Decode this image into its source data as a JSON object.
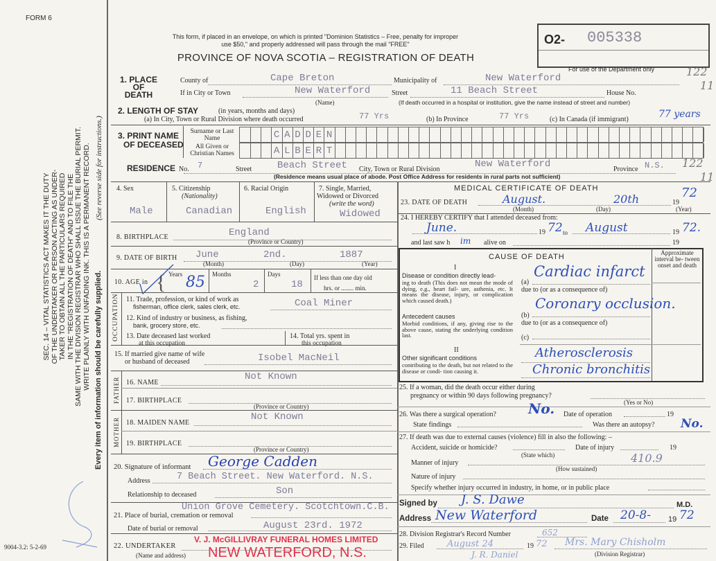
{
  "form_number": "FORM 6",
  "print_code": "9004-3.2: 5-2-69",
  "header": {
    "notice_line1": "This form, if placed in an envelope, on which is printed \"Dominion Statistics – Free, penalty for improper",
    "notice_line2": "use $50,\" and properly addressed will pass through the mail \"FREE\"",
    "title": "PROVINCE OF NOVA SCOTIA – REGISTRATION OF DEATH",
    "record_prefix": "O2-",
    "record_number": "005338",
    "dept_only": "For use of the Department only",
    "dept_code_1": "122",
    "dept_code_2": "11",
    "dept_code_3": "122",
    "dept_code_4": "11"
  },
  "sidebar": {
    "act_lines": [
      "SEC. 14 – VITAL STATISTICS ACT MAKES IT THE DUTY",
      "OF THE UNDERTAKER OR PERSON ACTING AS UNDER-",
      "TAKER TO OBTAIN ALL THE PARTICULARS REQUIRED",
      "IN THE \"REGISTRATION OF DEATH\" AND TO FILE THE",
      "SAME WITH THE DIVISION REGISTRAR WHO SHALL ISSUE THE BURIAL PERMIT.",
      "WRITE PLAINLY WITH UNFADING INK. THIS IS A PERMANENT RECORD."
    ],
    "every_item": "Every item of information should be carefully supplied.",
    "see_reverse": "(See reverse side for instructions.)"
  },
  "place_of_death": {
    "label": "1. PLACE OF DEATH",
    "county_label": "County of",
    "county": "Cape Breton",
    "municipality_label": "Municipality of",
    "municipality": "New Waterford",
    "city_label": "If in City or Town",
    "city": "New Waterford",
    "name_note": "(Name)",
    "street_label": "Street",
    "street": "11 Beach Street",
    "house_label": "House No.",
    "hospital_note": "(If death occurred in a hospital or institution, give the name instead of street and number)"
  },
  "length_of_stay": {
    "label": "2. LENGTH OF STAY",
    "label_note": "(in years, months and days)",
    "a_label": "(a) In City, Town or Rural Division where death occurred",
    "a_value": "77 Yrs",
    "b_label": "(b) In Province",
    "b_value": "77 Yrs",
    "c_label": "(c) In Canada (if immigrant)",
    "c_value": "77 years"
  },
  "name": {
    "label_1": "3. PRINT NAME",
    "label_2": "OF DECEASED",
    "surname_label": "Surname or Last Name",
    "given_label": "All Given or Christian Names",
    "surname": "CADDEN",
    "given": "ALBERT"
  },
  "residence": {
    "label": "RESIDENCE",
    "no_label": "No.",
    "no": "7",
    "street_label": "Street",
    "street": "Beach Street",
    "city_label": "City, Town or Rural Division",
    "city": "New Waterford",
    "province_label": "Province",
    "province": "N.S.",
    "note": "(Residence means usual place of abode. Post Office Address for residents in rural parts not sufficient)"
  },
  "personal": {
    "sex_label": "4. Sex",
    "sex": "Male",
    "citizenship_label": "5. Citizenship",
    "citizenship_sub": "(Nationality)",
    "citizenship": "Canadian",
    "racial_label": "6. Racial Origin",
    "racial": "English",
    "marital_label_1": "7. Single, Married,",
    "marital_label_2": "Widowed or Divorced",
    "marital_label_3": "(write the word)",
    "marital": "Widowed",
    "birthplace_label": "8. BIRTHPLACE",
    "birthplace": "England",
    "birthplace_note": "(Province or Country)",
    "dob_label": "9. DATE OF BIRTH",
    "dob_month": "June",
    "dob_day": "2nd.",
    "dob_year": "1887",
    "month_note": "(Month)",
    "day_note": "(Day)",
    "year_note": "(Year)",
    "age_label": "10. AGE in",
    "years_label": "Years",
    "years": "85",
    "months_label": "Months",
    "months": "2",
    "days_label": "Days",
    "days": "18",
    "less_day": "If less than one day old",
    "hrs_min": "hrs. or ........ min."
  },
  "occupation": {
    "section": "OCCUPATION",
    "trade_label_1": "11. Trade, profession, or kind of work as",
    "trade_label_2": "fisherman, office clerk, sales clerk, etc.",
    "trade": "Coal Miner",
    "industry_label_1": "12. Kind of industry or business, as fishing,",
    "industry_label_2": "bank, grocery store, etc.",
    "last_worked_label_1": "13. Date deceased last worked",
    "last_worked_label_2": "at this occupation",
    "total_years_label_1": "14. Total yrs. spent in",
    "total_years_label_2": "this occupation"
  },
  "spouse": {
    "label_1": "15. If married give name of wife",
    "label_2": "or husband of deceased",
    "name": "Isobel  MacNeil"
  },
  "father": {
    "section": "FATHER",
    "name_label": "16. NAME",
    "name": "Not Known",
    "birthplace_label": "17. BIRTHPLACE",
    "birthplace_note": "(Province or Country)"
  },
  "mother": {
    "section": "MOTHER",
    "maiden_label": "18. MAIDEN NAME",
    "maiden": "Not Known",
    "birthplace_label": "19. BIRTHPLACE",
    "birthplace_note": "(Province or Country)"
  },
  "informant": {
    "signature_label": "20. Signature of informant",
    "signature": "George Cadden",
    "address_label": "Address",
    "address": "7 Beach Street.  New Waterford. N.S.",
    "relationship_label": "Relationship to deceased",
    "relationship": "Son"
  },
  "burial": {
    "place_label": "21. Place of burial, cremation or removal",
    "place": "Union Grove Cemetery. Scotchtown.C.B.",
    "date_label": "Date of burial or removal",
    "date": "August 23rd. 1972"
  },
  "undertaker": {
    "label": "22. UNDERTAKER",
    "stamp_line1": "V. J. McGILLIVRAY FUNERAL HOMES LIMITED",
    "stamp_line2": "NEW WATERFORD, N.S.",
    "note": "(Name and address)"
  },
  "medical": {
    "title": "MEDICAL CERTIFICATE OF DEATH",
    "date_label": "23. DATE OF DEATH",
    "death_month": "August.",
    "death_day": "20th",
    "death_year_prefix": "19",
    "death_year": "72",
    "month_note": "(Month)",
    "day_note": "(Day)",
    "year_note": "(Year)",
    "certify_label": "24. I HEREBY CERTIFY that I attended deceased from:",
    "from_month": "June.",
    "from_year": "72",
    "to_label": "to",
    "to_month": "August",
    "to_year": "72.",
    "last_saw_label_1": "and last saw h",
    "last_saw_pronoun": "im",
    "last_saw_label_2": "alive on",
    "nineteen": "19"
  },
  "cause": {
    "title": "CAUSE OF DEATH",
    "interval_label": "Approximate interval be- tween onset and death",
    "part_1": "I",
    "direct_label": "Disease or condition directly lead-",
    "direct_desc": "ing to death (This does not mean the mode of dying, e.g., heart fail- ure, asthenia, etc. It means the disease, injury, or complication which caused death.)",
    "a_label": "(a)",
    "a_value": "Cardiac infarct",
    "due_to_1": "due to (or as a consequence of)",
    "antecedent_label": "Antecedent causes",
    "antecedent_desc": "Morbid conditions, if any, giving rise to the above cause, stating the underlying condition last.",
    "b_label": "(b)",
    "b_value": "Coronary occlusion.",
    "due_to_2": "due to (or as a consequence of)",
    "c_label": "(c)",
    "part_2": "II",
    "other_label": "Other significant conditions",
    "other_desc": "contributing to the death, but not related to the disease or condi- tion causing it.",
    "other_1": "Atherosclerosis",
    "other_2": "Chronic bronchitis"
  },
  "questions": {
    "q25_1": "25. If a woman, did the death occur either during",
    "q25_2": "pregnancy or within 90 days following pregnancy?",
    "yes_no": "(Yes or No)",
    "q26": "26. Was there a surgical operation?",
    "operation": "No.",
    "op_date_label": "Date of operation",
    "findings_label": "State findings",
    "autopsy_label": "Was there an autopsy?",
    "autopsy": "No.",
    "q27": "27. If death was due to external causes (violence) fill in also the following: –",
    "accident_label": "Accident, suicide or homicide?",
    "state_which": "(State which)",
    "injury_date_label": "Date of injury",
    "manner_label": "Manner of injury",
    "manner_code": "410.9",
    "how_sustained": "(How sustained)",
    "nature_label": "Nature of injury",
    "specify_label": "Specify whether injury occurred in industry, in home, or in public place"
  },
  "signature": {
    "signed_label": "Signed by",
    "signed": "J. S. Dawe",
    "md": "M.D.",
    "address_label": "Address",
    "address": "New Waterford",
    "date_label": "Date",
    "date": "20-8-",
    "year_prefix": "19",
    "year": "72"
  },
  "registrar": {
    "record_label": "28. Division Registrar's Record Number",
    "record_number": "652",
    "filed_label": "29. Filed",
    "filed_date": "August 24",
    "filed_year_prefix": "19",
    "filed_year": "72",
    "registrar_name": "Mrs. Mary Chisholm",
    "registrar_note": "(Division Registrar)",
    "initials": "J. R. Daniel"
  }
}
